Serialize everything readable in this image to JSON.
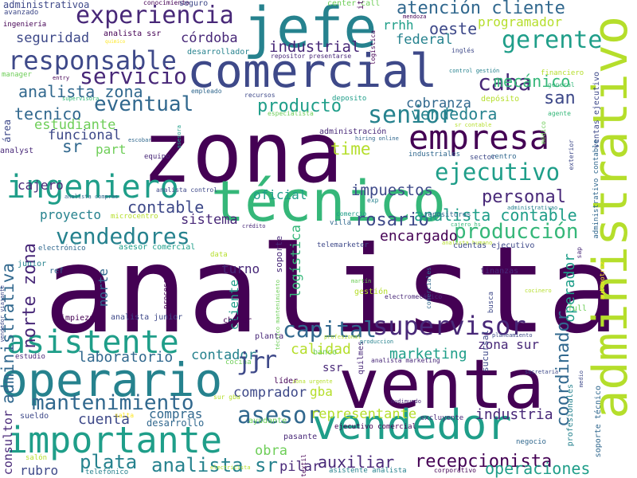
{
  "palette": {
    "p1": "#440154",
    "p2": "#482878",
    "p3": "#3e4989",
    "p4": "#31688e",
    "p5": "#26828e",
    "p6": "#1f9e89",
    "p7": "#35b779",
    "p8": "#6ece58",
    "p9": "#b5de2b",
    "p10": "#fde725"
  },
  "words": [
    {
      "text": "analista"
    },
    {
      "text": "zona"
    },
    {
      "text": "comercial"
    },
    {
      "text": "venta"
    },
    {
      "text": "técnico"
    },
    {
      "text": "jefe"
    },
    {
      "text": "administrativo"
    },
    {
      "text": "operario"
    },
    {
      "text": "vendedor"
    },
    {
      "text": "importante"
    },
    {
      "text": "empresa"
    },
    {
      "text": "ingeniero"
    },
    {
      "text": "asistente"
    },
    {
      "text": "supervisor"
    },
    {
      "text": "experiencia"
    },
    {
      "text": "responsable"
    },
    {
      "text": "gerente"
    },
    {
      "text": "senior"
    },
    {
      "text": "ejecutivo"
    },
    {
      "text": "vendedores"
    },
    {
      "text": "eventual"
    },
    {
      "text": "servicio"
    },
    {
      "text": "caba"
    },
    {
      "text": "producción"
    },
    {
      "text": "mantenimiento"
    },
    {
      "text": "capital"
    },
    {
      "text": "jr"
    },
    {
      "text": "asesor"
    },
    {
      "text": "plata"
    },
    {
      "text": "analista sr"
    },
    {
      "text": "coordinador"
    },
    {
      "text": "atención cliente"
    },
    {
      "text": "rosario"
    },
    {
      "text": "personal"
    },
    {
      "text": "mecánico"
    },
    {
      "text": "san"
    },
    {
      "text": "vendedora"
    },
    {
      "text": "oeste"
    },
    {
      "text": "industrial"
    },
    {
      "text": "analista zona"
    },
    {
      "text": "contable"
    },
    {
      "text": "norte zona"
    },
    {
      "text": "recepcionista"
    },
    {
      "text": "producto"
    },
    {
      "text": "analista contable"
    },
    {
      "text": "tecnico"
    },
    {
      "text": "impuestos"
    },
    {
      "text": "time"
    },
    {
      "text": "sr"
    },
    {
      "text": "laboratorio"
    },
    {
      "text": "cuenta"
    },
    {
      "text": "auxiliar"
    },
    {
      "text": "operaciones"
    },
    {
      "text": "industria"
    },
    {
      "text": "marketing"
    },
    {
      "text": "calidad"
    },
    {
      "text": "administrativa"
    },
    {
      "text": "seguridad"
    },
    {
      "text": "córdoba"
    },
    {
      "text": "federal"
    },
    {
      "text": "programador"
    },
    {
      "text": "estudiante"
    },
    {
      "text": "encargado"
    },
    {
      "text": "logística"
    },
    {
      "text": "funcional"
    },
    {
      "text": "cobranza"
    },
    {
      "text": "sistema"
    },
    {
      "text": "obra"
    },
    {
      "text": "contador"
    },
    {
      "text": "comprador"
    },
    {
      "text": "representante"
    },
    {
      "text": "gba"
    },
    {
      "text": "operador"
    },
    {
      "text": "proyecto"
    },
    {
      "text": "oficial"
    },
    {
      "text": "turno"
    },
    {
      "text": "compras"
    },
    {
      "text": "pilar"
    },
    {
      "text": "zona sur"
    },
    {
      "text": "rrhh"
    },
    {
      "text": "part"
    },
    {
      "text": "cajero"
    },
    {
      "text": "norte"
    },
    {
      "text": "cliente"
    },
    {
      "text": "consultor"
    },
    {
      "text": "rubro"
    },
    {
      "text": "ssr"
    },
    {
      "text": "desarrollo"
    },
    {
      "text": "administrativoa"
    },
    {
      "text": "ingeniería"
    },
    {
      "text": "avanzado"
    },
    {
      "text": "conocimiento"
    },
    {
      "text": "seguro"
    },
    {
      "text": "center call"
    },
    {
      "text": "it"
    },
    {
      "text": "mendoza"
    },
    {
      "text": "analista ssr"
    },
    {
      "text": "quimico"
    },
    {
      "text": "desarrollador"
    },
    {
      "text": "repositor presentarse"
    },
    {
      "text": "logística"
    },
    {
      "text": "control gestión"
    },
    {
      "text": "inglés"
    },
    {
      "text": "financiero"
    },
    {
      "text": "manager"
    },
    {
      "text": "entry"
    },
    {
      "text": "empleado"
    },
    {
      "text": "recursos"
    },
    {
      "text": "deposito"
    },
    {
      "text": "depósito"
    },
    {
      "text": "general"
    },
    {
      "text": "ventas ejecutivo"
    },
    {
      "text": "supervisora"
    },
    {
      "text": "especialista"
    },
    {
      "text": "agente"
    },
    {
      "text": "sr contable"
    },
    {
      "text": "médico"
    },
    {
      "text": "exterior"
    },
    {
      "text": "área"
    },
    {
      "text": "equipo"
    },
    {
      "text": "administración"
    },
    {
      "text": "hiring online"
    },
    {
      "text": "analyst"
    },
    {
      "text": "escobar"
    },
    {
      "text": "asesora"
    },
    {
      "text": "industriales"
    },
    {
      "text": "centro"
    },
    {
      "text": "sector"
    },
    {
      "text": "analista control"
    },
    {
      "text": "administrativo contable"
    },
    {
      "text": "exp"
    },
    {
      "text": "repositores"
    },
    {
      "text": "administrativao"
    },
    {
      "text": "analista compras"
    },
    {
      "text": "cajero hs"
    },
    {
      "text": "microcentro"
    },
    {
      "text": "comercio"
    },
    {
      "text": "crédito"
    },
    {
      "text": "villa"
    },
    {
      "text": "analista humano"
    },
    {
      "text": "data"
    },
    {
      "text": "electrónico"
    },
    {
      "text": "asesor comercial"
    },
    {
      "text": "soporte"
    },
    {
      "text": "telemarketer"
    },
    {
      "text": "cuentas ejecutivo"
    },
    {
      "text": "sap"
    },
    {
      "text": "junior"
    },
    {
      "text": "ref"
    },
    {
      "text": "comerciales"
    },
    {
      "text": "finanzas"
    },
    {
      "text": "vendedor viajante"
    },
    {
      "text": "proceso"
    },
    {
      "text": "técnico mantenimiento"
    },
    {
      "text": "martín"
    },
    {
      "text": "gestión"
    },
    {
      "text": "automotriz"
    },
    {
      "text": "limpieza"
    },
    {
      "text": "analista junior"
    },
    {
      "text": "chofer"
    },
    {
      "text": "electromecánico"
    },
    {
      "text": "busca"
    },
    {
      "text": "cocinero"
    },
    {
      "text": "full"
    },
    {
      "text": "profesional"
    },
    {
      "text": "quilmes"
    },
    {
      "text": "produccion"
    },
    {
      "text": "sucursal"
    },
    {
      "text": "estudio"
    },
    {
      "text": "planta"
    },
    {
      "text": "analista marketing"
    },
    {
      "text": "planeamiento"
    },
    {
      "text": "cocina"
    },
    {
      "text": "líder"
    },
    {
      "text": "banco"
    },
    {
      "text": "secretaria"
    },
    {
      "text": "zona urgente"
    },
    {
      "text": "medio"
    },
    {
      "text": "profesionales"
    },
    {
      "text": "sueldo"
    },
    {
      "text": "sur gba"
    },
    {
      "text": "mudimundo"
    },
    {
      "text": "soporte técnico"
    },
    {
      "text": "salta"
    },
    {
      "text": "ayudante"
    },
    {
      "text": "excluyente"
    },
    {
      "text": "negocio"
    },
    {
      "text": "ejecutivo comercial"
    },
    {
      "text": "pasante"
    },
    {
      "text": "salón"
    },
    {
      "text": "telefónico"
    },
    {
      "text": "electricista"
    },
    {
      "text": "textil"
    },
    {
      "text": "asistente analista"
    },
    {
      "text": "corporativo"
    },
    {
      "text": "jr"
    }
  ]
}
